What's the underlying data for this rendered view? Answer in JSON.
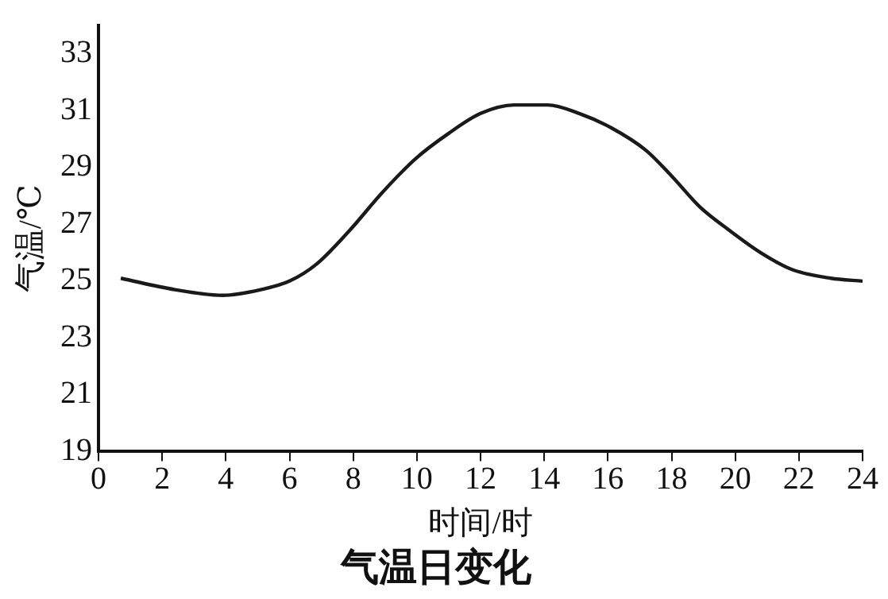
{
  "chart_data": {
    "type": "line",
    "title": "气温日变化",
    "xlabel": "时间/时",
    "ylabel": "气温/℃",
    "x": [
      0.7,
      2.4,
      3.9,
      5.1,
      6.0,
      6.85,
      7.9,
      8.9,
      9.95,
      11.0,
      12.0,
      13.05,
      14.1,
      15.1,
      16.1,
      17.2,
      18.0,
      18.9,
      19.8,
      20.8,
      21.8,
      23.0,
      24
    ],
    "series": [
      {
        "color": "#1a1a1a",
        "values": [
          25.1,
          24.7,
          24.5,
          24.7,
          25.0,
          25.6,
          26.8,
          28.1,
          29.3,
          30.2,
          30.9,
          31.2,
          31.2,
          30.9,
          30.4,
          29.6,
          28.7,
          27.6,
          26.8,
          26.0,
          25.4,
          25.1,
          25.0
        ]
      }
    ],
    "xlim": [
      0,
      24
    ],
    "xticks": [
      0,
      2,
      4,
      6,
      8,
      10,
      12,
      14,
      16,
      18,
      20,
      22,
      24
    ],
    "ylim": [
      19,
      34
    ],
    "yticks": [
      19,
      21,
      23,
      25,
      27,
      29,
      31,
      33
    ],
    "grid": false,
    "legend": false,
    "marker": "none",
    "line_style": "solid"
  }
}
